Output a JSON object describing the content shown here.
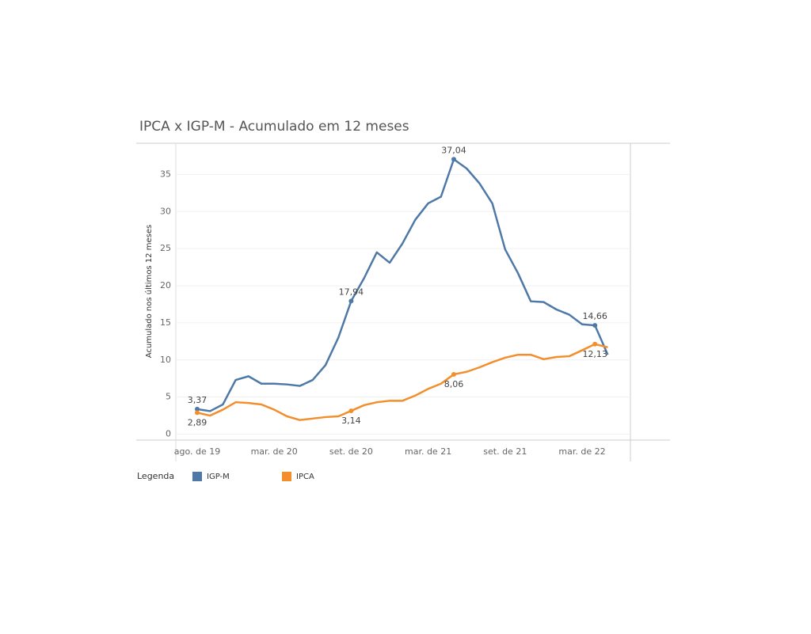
{
  "chart_data": {
    "type": "line",
    "title": "IPCA x IGP-M - Acumulado em 12 meses",
    "y_label": "Acumulado nos últimos 12 meses",
    "legend_title": "Legenda",
    "categories": [
      "ago. de 19",
      null,
      null,
      null,
      null,
      null,
      "mar. de 20",
      null,
      null,
      null,
      null,
      null,
      "set. de 20",
      null,
      null,
      null,
      null,
      null,
      "mar. de 21",
      null,
      null,
      null,
      null,
      null,
      "set. de 21",
      null,
      null,
      null,
      null,
      null,
      "mar. de 22",
      null,
      null
    ],
    "series": [
      {
        "name": "IGP-M",
        "color": "#4e79a7",
        "values": [
          3.37,
          3.1,
          4.0,
          7.3,
          7.8,
          6.8,
          6.8,
          6.7,
          6.5,
          7.3,
          9.3,
          13.0,
          17.94,
          21.0,
          24.5,
          23.1,
          25.7,
          28.9,
          31.1,
          32.0,
          37.04,
          35.8,
          33.8,
          31.1,
          24.9,
          21.7,
          17.9,
          17.8,
          16.8,
          16.1,
          14.8,
          14.66,
          10.7
        ],
        "value_labels": [
          "3,37",
          null,
          null,
          null,
          null,
          null,
          null,
          null,
          null,
          null,
          null,
          null,
          "17,94",
          null,
          null,
          null,
          null,
          null,
          null,
          null,
          "37,04",
          null,
          null,
          null,
          null,
          null,
          null,
          null,
          null,
          null,
          null,
          "14,66",
          null
        ]
      },
      {
        "name": "IPCA",
        "color": "#f28e2b",
        "values": [
          2.89,
          2.5,
          3.3,
          4.3,
          4.2,
          4.0,
          3.3,
          2.4,
          1.9,
          2.1,
          2.3,
          2.4,
          3.14,
          3.9,
          4.3,
          4.5,
          4.5,
          5.2,
          6.1,
          6.8,
          8.06,
          8.4,
          9.0,
          9.7,
          10.3,
          10.7,
          10.7,
          10.1,
          10.4,
          10.5,
          11.3,
          12.13,
          11.7
        ],
        "value_labels": [
          "2,89",
          null,
          null,
          null,
          null,
          null,
          null,
          null,
          null,
          null,
          null,
          null,
          "3,14",
          null,
          null,
          null,
          null,
          null,
          null,
          null,
          "8,06",
          null,
          null,
          null,
          null,
          null,
          null,
          null,
          null,
          null,
          null,
          "12,13",
          null
        ]
      }
    ],
    "ylim": [
      -0.8,
      39.2
    ],
    "yticks": [
      0,
      5,
      10,
      15,
      20,
      25,
      30,
      35
    ],
    "grid": true
  }
}
